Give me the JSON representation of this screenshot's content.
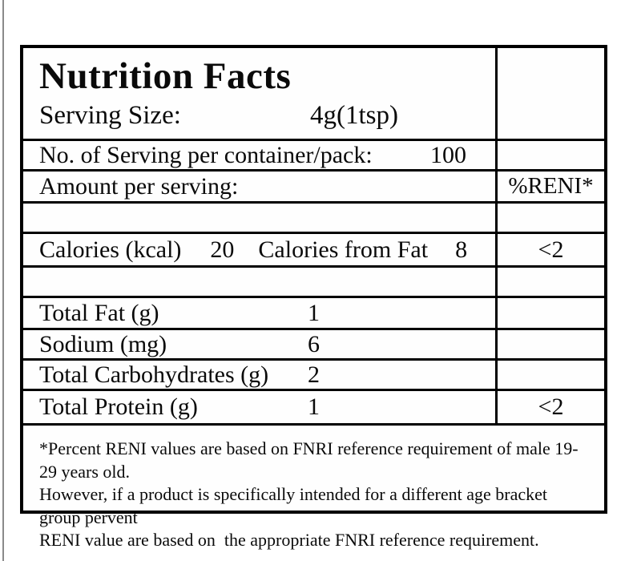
{
  "label": {
    "title": "Nutrition Facts",
    "serving_size": {
      "label": "Serving Size:",
      "value": "4g(1tsp)"
    },
    "servings_per_container": {
      "label": "No. of Serving per container/pack:",
      "value": "100"
    },
    "amount_per_serving_label": "Amount per serving:",
    "reni_column_header": "%RENI*",
    "calories": {
      "label": "Calories (kcal)",
      "value": "20",
      "from_fat_label": "Calories from Fat",
      "from_fat_value": "8",
      "reni": "<2"
    },
    "nutrients": [
      {
        "label": "Total Fat (g)",
        "value": "1",
        "reni": ""
      },
      {
        "label": "Sodium (mg)",
        "value": "6",
        "reni": ""
      },
      {
        "label": "Total Carbohydrates (g)",
        "value": "2",
        "reni": ""
      },
      {
        "label": "Total Protein (g)",
        "value": "1",
        "reni": "<2"
      }
    ],
    "footnote_lines": [
      "*Percent RENI values are based on FNRI reference requirement of male 19-29 years old.",
      "However, if a product is specifically intended for a different age bracket group pervent",
      "RENI value are based on  the appropriate FNRI reference requirement."
    ]
  },
  "colors": {
    "border": "#000000",
    "text": "#0a0a0a",
    "background": "#ffffff",
    "scan_edge_line": "#8a8a8a"
  }
}
